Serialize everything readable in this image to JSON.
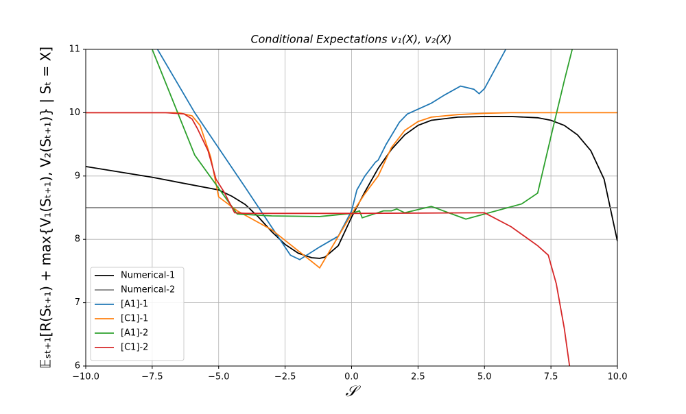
{
  "chart_data": {
    "type": "line",
    "title": "Conditional Expectations v₁(X), v₂(X)",
    "x_label": "𝒮",
    "y_label": "𝔼ₛₜ₊₁[R(Sₜ₊₁) + max{V₁(Sₜ₊₁), V₂(Sₜ₊₁)} | Sₜ = X]",
    "xlim": [
      -10,
      10
    ],
    "ylim": [
      6,
      11
    ],
    "xticks": [
      {
        "value": -10,
        "label": "−10.0"
      },
      {
        "value": -7.5,
        "label": "−7.5"
      },
      {
        "value": -5,
        "label": "−5.0"
      },
      {
        "value": -2.5,
        "label": "−2.5"
      },
      {
        "value": 0,
        "label": "0.0"
      },
      {
        "value": 2.5,
        "label": "2.5"
      },
      {
        "value": 5,
        "label": "5.0"
      },
      {
        "value": 7.5,
        "label": "7.5"
      },
      {
        "value": 10,
        "label": "10.0"
      }
    ],
    "yticks": [
      6,
      7,
      8,
      9,
      10,
      11
    ],
    "grid": true,
    "legend": "lower left",
    "series": [
      {
        "name": "Numerical-1",
        "color": "#000000",
        "x": [
          -10,
          -7.5,
          -5,
          -4.5,
          -4,
          -3.5,
          -3,
          -2.5,
          -2,
          -1.5,
          -1.2,
          -1,
          -0.5,
          0,
          0.5,
          1,
          1.5,
          2,
          2.5,
          3,
          4,
          5,
          6,
          7,
          7.5,
          8,
          8.5,
          9,
          9.5,
          10
        ],
        "values": [
          9.15,
          8.98,
          8.78,
          8.68,
          8.55,
          8.35,
          8.12,
          7.92,
          7.78,
          7.71,
          7.7,
          7.72,
          7.9,
          8.35,
          8.75,
          9.12,
          9.42,
          9.65,
          9.8,
          9.88,
          9.93,
          9.94,
          9.94,
          9.92,
          9.88,
          9.8,
          9.65,
          9.4,
          8.95,
          7.97
        ]
      },
      {
        "name": "Numerical-2",
        "color": "#808080",
        "x": [
          -10,
          10
        ],
        "values": [
          8.5,
          8.5
        ]
      },
      {
        "name": "[A1]-1",
        "color": "#1f77b4",
        "x": [
          -7.3,
          -5.9,
          -4,
          -2.3,
          -1.95,
          -1.2,
          -0.5,
          0,
          0.2,
          0.5,
          0.9,
          1,
          1.3,
          1.8,
          2.1,
          3,
          3.5,
          4.1,
          4.6,
          4.8,
          5,
          5.8
        ],
        "values": [
          11,
          10,
          8.82,
          7.75,
          7.68,
          7.88,
          8.05,
          8.45,
          8.78,
          9,
          9.22,
          9.25,
          9.5,
          9.85,
          9.98,
          10.15,
          10.28,
          10.42,
          10.37,
          10.3,
          10.38,
          11
        ]
      },
      {
        "name": "[C1]-1",
        "color": "#ff7f0e",
        "x": [
          -10,
          -6.5,
          -6,
          -5.7,
          -5.3,
          -5,
          -4.3,
          -3,
          -1.2,
          0,
          0.5,
          1,
          1.5,
          2,
          2.5,
          3,
          4,
          5,
          6,
          10
        ],
        "values": [
          10,
          10,
          9.95,
          9.8,
          9.3,
          8.67,
          8.45,
          8.15,
          7.55,
          8.4,
          8.72,
          9,
          9.45,
          9.72,
          9.86,
          9.93,
          9.97,
          9.99,
          10,
          10
        ]
      },
      {
        "name": "[A1]-2",
        "color": "#2ca02c",
        "x": [
          -7.5,
          -5.9,
          -4.3,
          -3,
          -1.2,
          0,
          0.3,
          0.4,
          1.2,
          1.5,
          1.7,
          2,
          3,
          4.3,
          5,
          6.4,
          7,
          7.6,
          8,
          8.3
        ],
        "values": [
          11,
          9.33,
          8.4,
          8.37,
          8.36,
          8.41,
          8.45,
          8.34,
          8.45,
          8.45,
          8.48,
          8.42,
          8.52,
          8.32,
          8.4,
          8.56,
          8.73,
          9.8,
          10.5,
          11
        ]
      },
      {
        "name": "[C1]-2",
        "color": "#d62728",
        "x": [
          -10,
          -7,
          -6.3,
          -6,
          -5.8,
          -5.4,
          -5.1,
          -4.8,
          -4.4,
          -4,
          0,
          5,
          6,
          7,
          7.4,
          7.7,
          8,
          8.2
        ],
        "values": [
          10,
          10,
          9.98,
          9.9,
          9.75,
          9.4,
          8.95,
          8.75,
          8.42,
          8.41,
          8.41,
          8.42,
          8.2,
          7.9,
          7.75,
          7.3,
          6.6,
          6
        ]
      }
    ]
  }
}
